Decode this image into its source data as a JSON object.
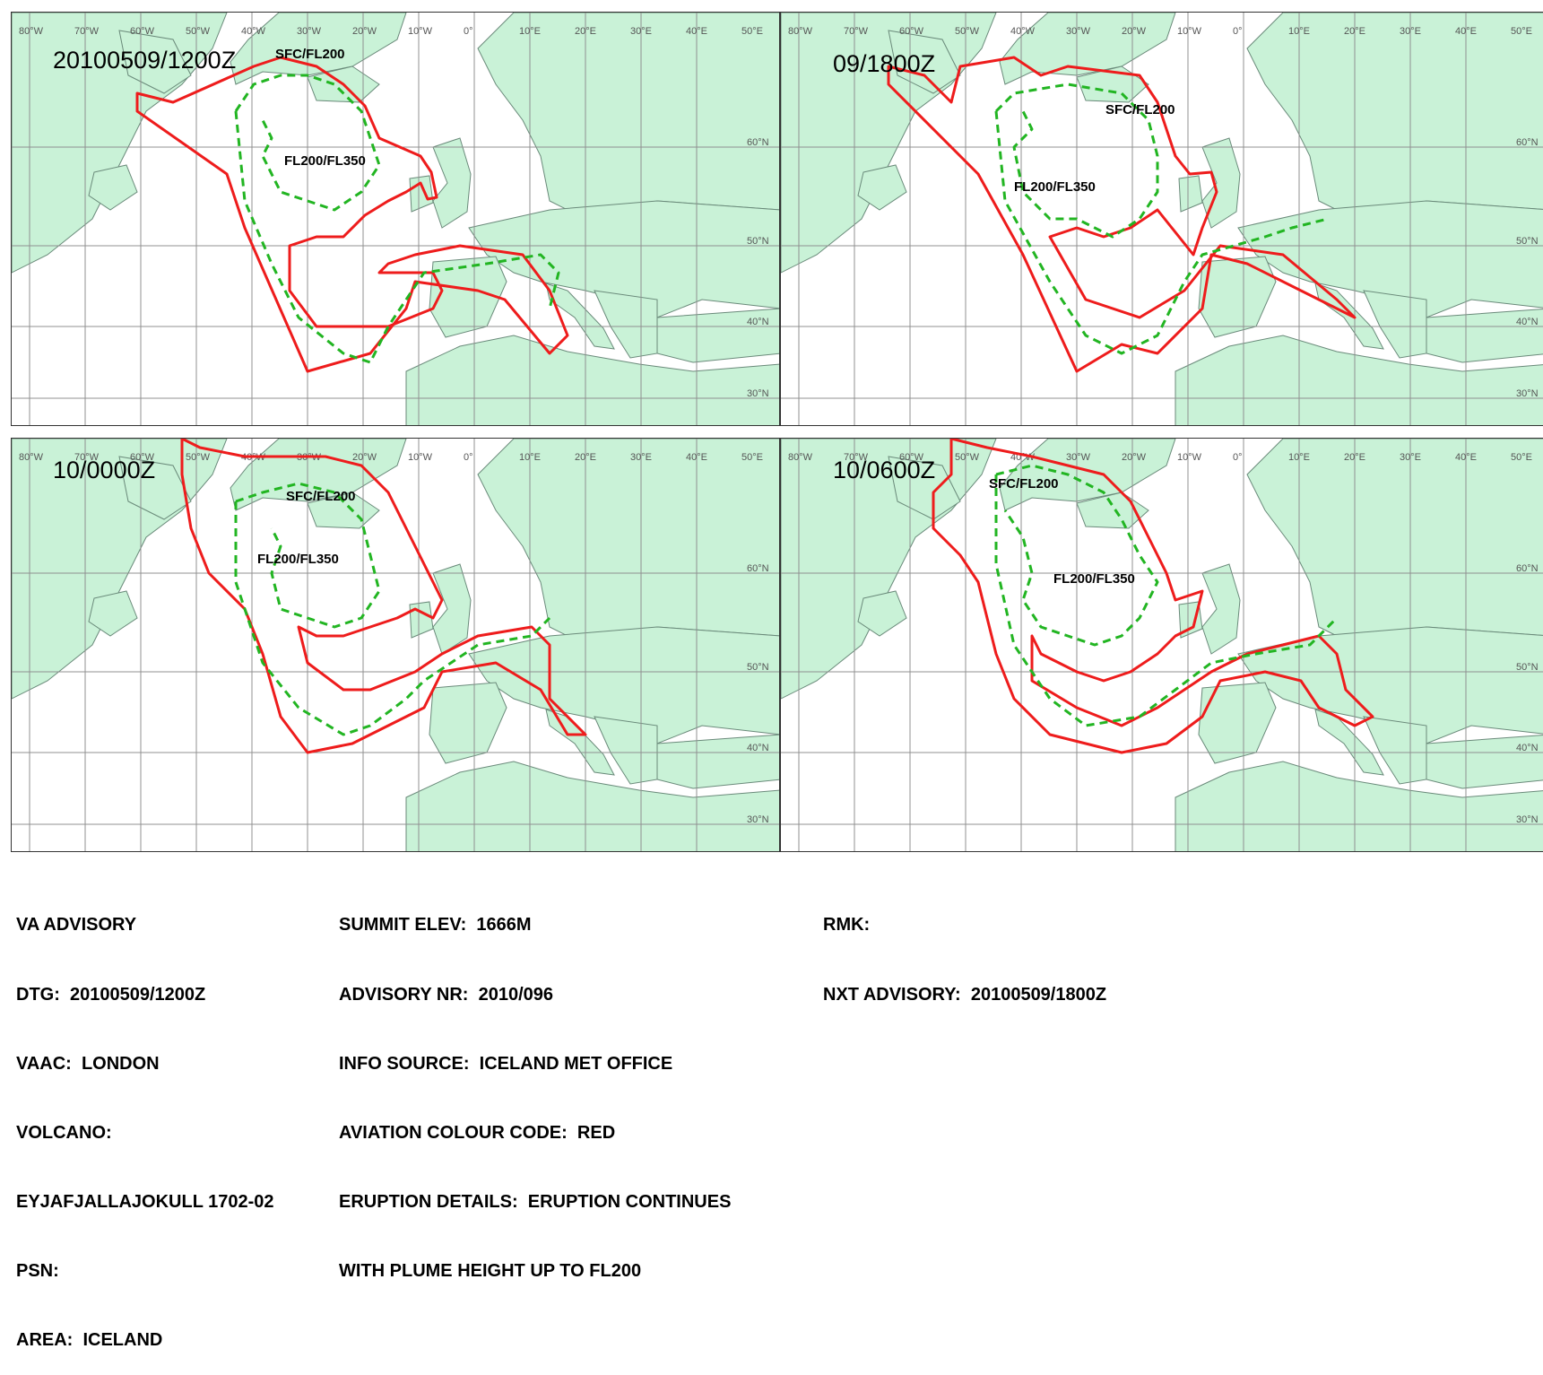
{
  "colors": {
    "land": "#c9f2d7",
    "sea": "#ffffff",
    "sfc_fl200_line": "#ee1c1c",
    "fl200_fl350_line": "#22b522",
    "grid": "#909090"
  },
  "map": {
    "lon_labels": [
      "80°W",
      "70°W",
      "60°W",
      "50°W",
      "40°W",
      "30°W",
      "20°W",
      "10°W",
      "0°",
      "10°E",
      "20°E",
      "30°E",
      "40°E",
      "50°E"
    ],
    "lat_labels": [
      "60°N",
      "50°N",
      "40°N",
      "30°N"
    ],
    "layers": [
      {
        "label": "SFC/FL200",
        "color": "red",
        "style": "solid"
      },
      {
        "label": "FL200/FL350",
        "color": "green",
        "style": "dashed"
      }
    ]
  },
  "panels": [
    {
      "timestamp": "20100509/1200Z",
      "layer_labels": [
        "SFC/FL200",
        "FL200/FL350"
      ]
    },
    {
      "timestamp": "09/1800Z",
      "layer_labels": [
        "SFC/FL200",
        "FL200/FL350"
      ]
    },
    {
      "timestamp": "10/0000Z",
      "layer_labels": [
        "SFC/FL200",
        "FL200/FL350"
      ]
    },
    {
      "timestamp": "10/0600Z",
      "layer_labels": [
        "SFC/FL200",
        "FL200/FL350"
      ]
    }
  ],
  "advisory": {
    "col1": [
      "VA ADVISORY",
      "DTG:  20100509/1200Z",
      "VAAC:  LONDON",
      "VOLCANO:",
      "EYJAFJALLAJOKULL 1702-02",
      "PSN:",
      "AREA:  ICELAND"
    ],
    "col2": [
      "SUMMIT ELEV:  1666M",
      "ADVISORY NR:  2010/096",
      "INFO SOURCE:  ICELAND MET OFFICE",
      "AVIATION COLOUR CODE:  RED",
      "ERUPTION DETAILS:  ERUPTION CONTINUES",
      "WITH PLUME HEIGHT UP TO FL200"
    ],
    "col3": [
      "RMK:",
      "NXT ADVISORY:  20100509/1800Z"
    ]
  }
}
